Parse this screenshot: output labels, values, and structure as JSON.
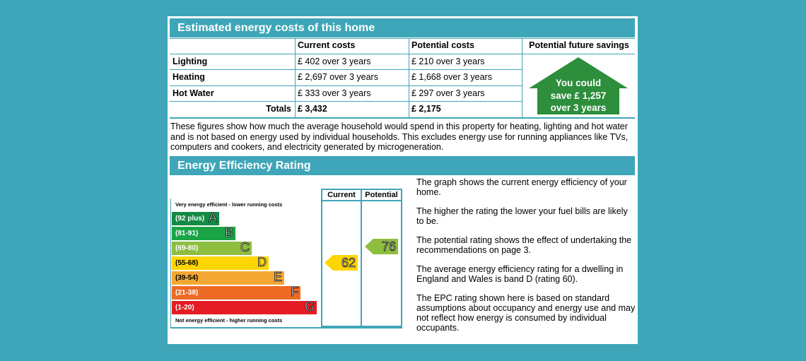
{
  "costs": {
    "title": "Estimated energy costs of this home",
    "headers": [
      "Current costs",
      "Potential costs",
      "Potential future savings"
    ],
    "rows": [
      {
        "label": "Lighting",
        "current": "£ 402 over 3 years",
        "potential": "£ 210 over 3 years"
      },
      {
        "label": "Heating",
        "current": "£ 2,697 over 3 years",
        "potential": "£ 1,668 over 3 years"
      },
      {
        "label": "Hot Water",
        "current": "£ 333 over 3 years",
        "potential": "£ 297 over 3 years"
      }
    ],
    "totals": {
      "label": "Totals",
      "current": "£ 3,432",
      "potential": "£ 2,175"
    },
    "savings": [
      "You could",
      "save £ 1,257",
      "over 3 years"
    ],
    "note": "These figures show how much the average household would spend in this property for heating, lighting and hot water and is not based on energy used by individual households. This excludes energy use for running appliances like TVs, computers and cookers, and electricity generated by microgeneration."
  },
  "rating": {
    "title": "Energy Efficiency Rating",
    "col_current": "Current",
    "col_potential": "Potential",
    "top_note": "Very energy efficient - lower running costs",
    "bottom_note": "Not energy efficient - higher running costs",
    "bands": [
      {
        "range": "(92 plus)",
        "letter": "A",
        "color": "#138a45"
      },
      {
        "range": "(81-91)",
        "letter": "B",
        "color": "#1aa446"
      },
      {
        "range": "(69-80)",
        "letter": "C",
        "color": "#8dbe3f"
      },
      {
        "range": "(55-68)",
        "letter": "D",
        "color": "#ffd500"
      },
      {
        "range": "(39-54)",
        "letter": "E",
        "color": "#f5a733"
      },
      {
        "range": "(21-38)",
        "letter": "F",
        "color": "#ee6b25"
      },
      {
        "range": "(1-20)",
        "letter": "G",
        "color": "#e31d23"
      }
    ],
    "current_value": "62",
    "current_color": "#ffd500",
    "potential_value": "76",
    "potential_color": "#8dbe3f",
    "text": [
      "The graph shows the current energy efficiency of your home.",
      "The higher the rating the lower your fuel bills are likely to be.",
      "The potential rating shows the effect of undertaking the recommendations on page 3.",
      "The average energy efficiency rating for a dwelling in England and Wales is band D (rating 60).",
      "The EPC rating shown here is based on standard assumptions about occupancy and energy use and may not reflect how energy is consumed by individual occupants."
    ]
  }
}
